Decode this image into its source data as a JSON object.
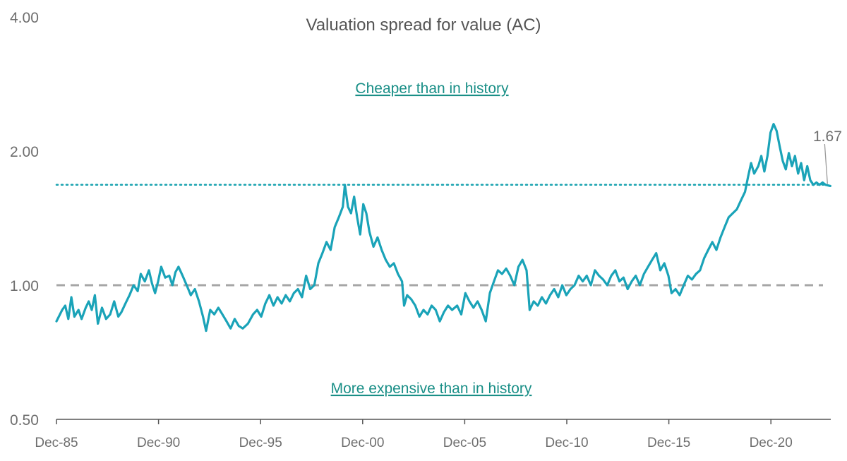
{
  "chart_data": {
    "type": "line",
    "title": "Valuation spread for value (AC)",
    "xlabel": "",
    "ylabel": "",
    "y_scale": "log",
    "ylim": [
      0.5,
      4.0
    ],
    "y_ticks": [
      {
        "value": 0.5,
        "label": "0.50"
      },
      {
        "value": 1.0,
        "label": "1.00"
      },
      {
        "value": 2.0,
        "label": "2.00"
      },
      {
        "value": 4.0,
        "label": "4.00"
      }
    ],
    "xlim": [
      1985.92,
      2023.83
    ],
    "x_ticks": [
      {
        "value": 1985.92,
        "label": "Dec-85"
      },
      {
        "value": 1990.92,
        "label": "Dec-90"
      },
      {
        "value": 1995.92,
        "label": "Dec-95"
      },
      {
        "value": 2000.92,
        "label": "Dec-00"
      },
      {
        "value": 2005.92,
        "label": "Dec-05"
      },
      {
        "value": 2010.92,
        "label": "Dec-10"
      },
      {
        "value": 2015.92,
        "label": "Dec-15"
      },
      {
        "value": 2020.92,
        "label": "Dec-20"
      }
    ],
    "reference_lines": [
      {
        "name": "historical-max-line",
        "value": 1.68,
        "style": "dotted",
        "color": "#1aa3b0"
      },
      {
        "name": "parity-line",
        "value": 1.0,
        "style": "dashed",
        "color": "#a6a6a6"
      }
    ],
    "annotations": [
      {
        "name": "cheaper-annotation",
        "text": "Cheaper than in history"
      },
      {
        "name": "expensive-annotation",
        "text": "More expensive than in history"
      }
    ],
    "end_label": "1.67",
    "series": [
      {
        "name": "Valuation spread",
        "color": "#1aa3b8",
        "points": [
          [
            1985.92,
            0.83
          ],
          [
            1986.2,
            0.88
          ],
          [
            1986.35,
            0.9
          ],
          [
            1986.5,
            0.84
          ],
          [
            1986.65,
            0.94
          ],
          [
            1986.8,
            0.85
          ],
          [
            1987.0,
            0.88
          ],
          [
            1987.15,
            0.84
          ],
          [
            1987.35,
            0.89
          ],
          [
            1987.5,
            0.92
          ],
          [
            1987.65,
            0.88
          ],
          [
            1987.8,
            0.95
          ],
          [
            1987.95,
            0.82
          ],
          [
            1988.15,
            0.89
          ],
          [
            1988.35,
            0.84
          ],
          [
            1988.55,
            0.86
          ],
          [
            1988.75,
            0.92
          ],
          [
            1988.95,
            0.85
          ],
          [
            1989.1,
            0.87
          ],
          [
            1989.3,
            0.91
          ],
          [
            1989.5,
            0.95
          ],
          [
            1989.7,
            1.0
          ],
          [
            1989.9,
            0.97
          ],
          [
            1990.05,
            1.06
          ],
          [
            1990.25,
            1.02
          ],
          [
            1990.45,
            1.08
          ],
          [
            1990.6,
            1.01
          ],
          [
            1990.75,
            0.96
          ],
          [
            1990.9,
            1.02
          ],
          [
            1991.05,
            1.1
          ],
          [
            1991.25,
            1.04
          ],
          [
            1991.45,
            1.05
          ],
          [
            1991.6,
            1.0
          ],
          [
            1991.75,
            1.07
          ],
          [
            1991.9,
            1.1
          ],
          [
            1992.1,
            1.05
          ],
          [
            1992.3,
            1.0
          ],
          [
            1992.5,
            0.95
          ],
          [
            1992.7,
            0.98
          ],
          [
            1992.9,
            0.92
          ],
          [
            1993.1,
            0.85
          ],
          [
            1993.25,
            0.79
          ],
          [
            1993.45,
            0.88
          ],
          [
            1993.65,
            0.86
          ],
          [
            1993.85,
            0.89
          ],
          [
            1994.05,
            0.86
          ],
          [
            1994.25,
            0.83
          ],
          [
            1994.45,
            0.8
          ],
          [
            1994.65,
            0.84
          ],
          [
            1994.85,
            0.81
          ],
          [
            1995.05,
            0.8
          ],
          [
            1995.3,
            0.82
          ],
          [
            1995.55,
            0.86
          ],
          [
            1995.75,
            0.88
          ],
          [
            1995.95,
            0.85
          ],
          [
            1996.15,
            0.91
          ],
          [
            1996.35,
            0.95
          ],
          [
            1996.55,
            0.9
          ],
          [
            1996.75,
            0.94
          ],
          [
            1996.95,
            0.91
          ],
          [
            1997.15,
            0.95
          ],
          [
            1997.35,
            0.92
          ],
          [
            1997.55,
            0.96
          ],
          [
            1997.75,
            0.98
          ],
          [
            1997.95,
            0.94
          ],
          [
            1998.15,
            1.05
          ],
          [
            1998.35,
            0.98
          ],
          [
            1998.55,
            1.0
          ],
          [
            1998.75,
            1.12
          ],
          [
            1998.95,
            1.18
          ],
          [
            1999.15,
            1.25
          ],
          [
            1999.35,
            1.2
          ],
          [
            1999.55,
            1.35
          ],
          [
            1999.75,
            1.42
          ],
          [
            1999.95,
            1.5
          ],
          [
            2000.05,
            1.68
          ],
          [
            2000.2,
            1.5
          ],
          [
            2000.35,
            1.45
          ],
          [
            2000.5,
            1.58
          ],
          [
            2000.65,
            1.42
          ],
          [
            2000.8,
            1.3
          ],
          [
            2000.95,
            1.52
          ],
          [
            2001.1,
            1.45
          ],
          [
            2001.25,
            1.32
          ],
          [
            2001.45,
            1.22
          ],
          [
            2001.65,
            1.28
          ],
          [
            2001.85,
            1.2
          ],
          [
            2002.05,
            1.14
          ],
          [
            2002.25,
            1.1
          ],
          [
            2002.45,
            1.12
          ],
          [
            2002.65,
            1.06
          ],
          [
            2002.85,
            1.02
          ],
          [
            2002.95,
            0.9
          ],
          [
            2003.1,
            0.95
          ],
          [
            2003.3,
            0.93
          ],
          [
            2003.5,
            0.9
          ],
          [
            2003.7,
            0.85
          ],
          [
            2003.9,
            0.88
          ],
          [
            2004.1,
            0.86
          ],
          [
            2004.3,
            0.9
          ],
          [
            2004.5,
            0.88
          ],
          [
            2004.7,
            0.83
          ],
          [
            2004.9,
            0.87
          ],
          [
            2005.1,
            0.9
          ],
          [
            2005.3,
            0.88
          ],
          [
            2005.55,
            0.9
          ],
          [
            2005.75,
            0.86
          ],
          [
            2005.95,
            0.96
          ],
          [
            2006.15,
            0.92
          ],
          [
            2006.35,
            0.89
          ],
          [
            2006.55,
            0.92
          ],
          [
            2006.75,
            0.88
          ],
          [
            2006.95,
            0.83
          ],
          [
            2007.15,
            0.96
          ],
          [
            2007.35,
            1.02
          ],
          [
            2007.55,
            1.08
          ],
          [
            2007.75,
            1.06
          ],
          [
            2007.95,
            1.09
          ],
          [
            2008.15,
            1.05
          ],
          [
            2008.35,
            1.0
          ],
          [
            2008.55,
            1.1
          ],
          [
            2008.75,
            1.14
          ],
          [
            2008.95,
            1.08
          ],
          [
            2009.1,
            0.88
          ],
          [
            2009.3,
            0.92
          ],
          [
            2009.5,
            0.9
          ],
          [
            2009.7,
            0.94
          ],
          [
            2009.9,
            0.91
          ],
          [
            2010.1,
            0.95
          ],
          [
            2010.3,
            0.98
          ],
          [
            2010.5,
            0.94
          ],
          [
            2010.7,
            1.0
          ],
          [
            2010.9,
            0.95
          ],
          [
            2011.1,
            0.98
          ],
          [
            2011.3,
            1.0
          ],
          [
            2011.5,
            1.05
          ],
          [
            2011.7,
            1.02
          ],
          [
            2011.9,
            1.05
          ],
          [
            2012.1,
            1.0
          ],
          [
            2012.3,
            1.08
          ],
          [
            2012.5,
            1.05
          ],
          [
            2012.7,
            1.03
          ],
          [
            2012.9,
            1.0
          ],
          [
            2013.1,
            1.05
          ],
          [
            2013.3,
            1.08
          ],
          [
            2013.5,
            1.02
          ],
          [
            2013.7,
            1.04
          ],
          [
            2013.9,
            0.98
          ],
          [
            2014.1,
            1.02
          ],
          [
            2014.3,
            1.05
          ],
          [
            2014.5,
            1.0
          ],
          [
            2014.7,
            1.06
          ],
          [
            2014.9,
            1.1
          ],
          [
            2015.1,
            1.14
          ],
          [
            2015.3,
            1.18
          ],
          [
            2015.5,
            1.08
          ],
          [
            2015.7,
            1.12
          ],
          [
            2015.9,
            1.05
          ],
          [
            2016.05,
            0.96
          ],
          [
            2016.25,
            0.98
          ],
          [
            2016.45,
            0.95
          ],
          [
            2016.65,
            1.0
          ],
          [
            2016.85,
            1.05
          ],
          [
            2017.05,
            1.03
          ],
          [
            2017.25,
            1.06
          ],
          [
            2017.45,
            1.08
          ],
          [
            2017.65,
            1.15
          ],
          [
            2017.85,
            1.2
          ],
          [
            2018.05,
            1.25
          ],
          [
            2018.25,
            1.2
          ],
          [
            2018.45,
            1.28
          ],
          [
            2018.65,
            1.35
          ],
          [
            2018.85,
            1.42
          ],
          [
            2019.05,
            1.45
          ],
          [
            2019.25,
            1.48
          ],
          [
            2019.45,
            1.55
          ],
          [
            2019.65,
            1.62
          ],
          [
            2019.8,
            1.75
          ],
          [
            2019.95,
            1.88
          ],
          [
            2020.1,
            1.78
          ],
          [
            2020.3,
            1.85
          ],
          [
            2020.45,
            1.95
          ],
          [
            2020.6,
            1.8
          ],
          [
            2020.75,
            1.95
          ],
          [
            2020.9,
            2.2
          ],
          [
            2021.05,
            2.3
          ],
          [
            2021.2,
            2.22
          ],
          [
            2021.35,
            2.05
          ],
          [
            2021.5,
            1.9
          ],
          [
            2021.65,
            1.82
          ],
          [
            2021.8,
            1.98
          ],
          [
            2021.95,
            1.85
          ],
          [
            2022.1,
            1.95
          ],
          [
            2022.25,
            1.78
          ],
          [
            2022.4,
            1.88
          ],
          [
            2022.55,
            1.72
          ],
          [
            2022.7,
            1.85
          ],
          [
            2022.85,
            1.72
          ],
          [
            2023.0,
            1.68
          ],
          [
            2023.15,
            1.7
          ],
          [
            2023.3,
            1.68
          ],
          [
            2023.45,
            1.7
          ],
          [
            2023.6,
            1.68
          ],
          [
            2023.83,
            1.67
          ]
        ]
      }
    ]
  }
}
